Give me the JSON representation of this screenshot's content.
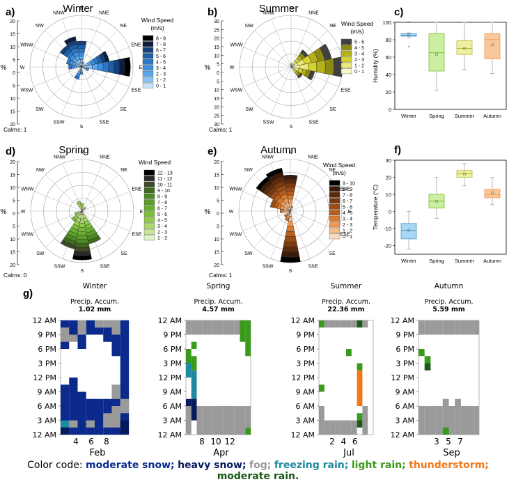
{
  "chart_data": [
    {
      "type": "wind-rose",
      "panel": "a)",
      "title": "Winter",
      "calms": "Calms: 1",
      "r_ticks": [
        20,
        15,
        10,
        5,
        0,
        5,
        10,
        15,
        20
      ],
      "r_max": 20,
      "legend_title": [
        "Wind Speed",
        "(m/s)"
      ],
      "legend": [
        "8 - 9",
        "7 - 8",
        "6 - 7",
        "5 - 6",
        "4 - 5",
        "3 - 4",
        "2 - 3",
        "1 - 2",
        "0 - 1"
      ],
      "legend_colors": [
        "#000000",
        "#0d1e3d",
        "#16407a",
        "#1f5fa8",
        "#2b78c8",
        "#3d8fe0",
        "#58a6ee",
        "#8cc4f4",
        "#c6e2fa"
      ],
      "direction_freq": [
        {
          "dir": "NW",
          "value": 10
        },
        {
          "dir": "NNW",
          "value": 12
        },
        {
          "dir": "N",
          "value": 10
        },
        {
          "dir": "NNE",
          "value": 2
        },
        {
          "dir": "ENE",
          "value": 11
        },
        {
          "dir": "E",
          "value": 19
        },
        {
          "dir": "ESE",
          "value": 3
        },
        {
          "dir": "SSW",
          "value": 5
        },
        {
          "dir": "S",
          "value": 3
        },
        {
          "dir": "WNW",
          "value": 6
        },
        {
          "dir": "W",
          "value": 5
        }
      ]
    },
    {
      "type": "wind-rose",
      "panel": "b)",
      "title": "Summer",
      "calms": "Calms: 1",
      "r_ticks": [
        30,
        25,
        20,
        15,
        10,
        5,
        0,
        5,
        10,
        15,
        20,
        25,
        30
      ],
      "r_max": 30,
      "legend_title": [
        "Wind Speed",
        "(m/s)"
      ],
      "legend": [
        "5 - 6",
        "4 - 5",
        "3 - 4",
        "2 - 3",
        "1 - 2",
        "0 - 1"
      ],
      "legend_colors": [
        "#404040",
        "#8f8a10",
        "#b6b01a",
        "#d8d32e",
        "#ece97a",
        "#f8f6c8"
      ],
      "direction_freq": [
        {
          "dir": "NE",
          "value": 12
        },
        {
          "dir": "ENE",
          "value": 24
        },
        {
          "dir": "E",
          "value": 30
        },
        {
          "dir": "ESE",
          "value": 14
        },
        {
          "dir": "SE",
          "value": 8
        },
        {
          "dir": "N",
          "value": 2
        }
      ]
    },
    {
      "type": "box",
      "panel": "c)",
      "ylabel": "Humidity (%)",
      "categories": [
        "Winter",
        "Spring",
        "Summer",
        "Autumn"
      ],
      "ylim": [
        0,
        100
      ],
      "yticks": [
        0,
        20,
        40,
        60,
        80,
        100
      ],
      "boxes": [
        {
          "q1": 84,
          "median": 85,
          "q3": 87,
          "whisker_low": 82,
          "whisker_high": 88,
          "mean": 85,
          "outliers": [
            72,
            100
          ]
        },
        {
          "q1": 44,
          "median": 65,
          "q3": 87,
          "whisker_low": 22,
          "whisker_high": 100,
          "mean": 63
        },
        {
          "q1": 63,
          "median": 70,
          "q3": 79,
          "whisker_low": 46,
          "whisker_high": 100,
          "mean": 70
        },
        {
          "q1": 58,
          "median": 80,
          "q3": 87,
          "whisker_low": 41,
          "whisker_high": 100,
          "mean": 74
        }
      ],
      "colors": [
        "#a9d6f2",
        "#cceea0",
        "#eef0a0",
        "#f8c89a"
      ],
      "edge_colors": [
        "#4a96c8",
        "#7cbc3a",
        "#b6b63c",
        "#e89a56"
      ]
    },
    {
      "type": "wind-rose",
      "panel": "d)",
      "title": "Spring",
      "calms": "Calms: 0",
      "r_ticks": [
        20,
        15,
        10,
        5,
        0,
        5,
        10,
        15,
        20
      ],
      "r_max": 20,
      "legend_title": [
        "Wind Speed"
      ],
      "legend": [
        "12 - 13",
        "11 - 12",
        "10 - 11",
        "9 - 10",
        "8 - 9",
        "7 - 8",
        "6 - 7",
        "5 - 6",
        "4 - 5",
        "3 - 4",
        "2 - 3",
        "1 - 2"
      ],
      "legend_colors": [
        "#000000",
        "#2a2a2a",
        "#3c4a28",
        "#406a1e",
        "#4c8a22",
        "#5a9e28",
        "#6ab030",
        "#7cc03a",
        "#92cc4e",
        "#aed86e",
        "#c8e698",
        "#e2f2c8"
      ],
      "direction_freq": [
        {
          "dir": "S",
          "value": 19
        },
        {
          "dir": "SSW",
          "value": 15
        },
        {
          "dir": "SSE",
          "value": 13
        },
        {
          "dir": "SW",
          "value": 5
        },
        {
          "dir": "WSW",
          "value": 3
        },
        {
          "dir": "NNW",
          "value": 4
        },
        {
          "dir": "N",
          "value": 3
        },
        {
          "dir": "NE",
          "value": 2
        }
      ]
    },
    {
      "type": "wind-rose",
      "panel": "e)",
      "title": "Autumn",
      "calms": "Calms: 1",
      "r_ticks": [
        20,
        15,
        10,
        5,
        0,
        5,
        10,
        15,
        20
      ],
      "r_max": 20,
      "legend_title": [
        "Wind Speed",
        "(m/s)"
      ],
      "legend": [
        "9 - 10",
        "8 - 9",
        "7 - 8",
        "6 - 7",
        "5 - 6",
        "4 - 5",
        "3 - 4",
        "2 - 3",
        "1 - 2",
        "0 - 1"
      ],
      "legend_colors": [
        "#000000",
        "#3a1a08",
        "#5a2a0c",
        "#7a3a10",
        "#9a4c16",
        "#b85e1c",
        "#d87a30",
        "#ee9a56",
        "#f6bc8c",
        "#fbdcc0"
      ],
      "direction_freq": [
        {
          "dir": "NW",
          "value": 16
        },
        {
          "dir": "NNW",
          "value": 17
        },
        {
          "dir": "N",
          "value": 14
        },
        {
          "dir": "WNW",
          "value": 8
        },
        {
          "dir": "W",
          "value": 4
        },
        {
          "dir": "S",
          "value": 20
        },
        {
          "dir": "SSW",
          "value": 4
        },
        {
          "dir": "SW",
          "value": 3
        },
        {
          "dir": "NNE",
          "value": 2
        }
      ]
    },
    {
      "type": "box",
      "panel": "f)",
      "ylabel": "Temperature (°C)",
      "categories": [
        "Winter",
        "Spring",
        "Summer",
        "Autumn"
      ],
      "ylim": [
        -25,
        30
      ],
      "yticks": [
        -20,
        -10,
        0,
        10,
        20,
        30
      ],
      "boxes": [
        {
          "q1": -16,
          "median": -11,
          "q3": -7,
          "whisker_low": -22,
          "whisker_high": 0,
          "mean": -11
        },
        {
          "q1": 2,
          "median": 6,
          "q3": 10,
          "whisker_low": -4,
          "whisker_high": 20,
          "mean": 6
        },
        {
          "q1": 20,
          "median": 22,
          "q3": 24,
          "whisker_low": 15,
          "whisker_high": 28,
          "mean": 22
        },
        {
          "q1": 8,
          "median": 10,
          "q3": 13,
          "whisker_low": 4,
          "whisker_high": 20,
          "mean": 11
        }
      ],
      "colors": [
        "#a9d6f2",
        "#cceea0",
        "#eef0a0",
        "#f8c89a"
      ],
      "edge_colors": [
        "#4a96c8",
        "#7cbc3a",
        "#b6b63c",
        "#e89a56"
      ]
    },
    {
      "type": "heatmap",
      "panel": "g)",
      "y_ticks": [
        "12 AM",
        "9 PM",
        "6 PM",
        "3 PM",
        "12 PM",
        "9 AM",
        "6 AM",
        "3 AM",
        "12 AM"
      ],
      "precip_label": "Precip. Accum.",
      "seasons": [
        {
          "title": "Winter",
          "accum": "1.02 mm",
          "month": "Feb",
          "xticks": [
            "4",
            "6",
            "8"
          ]
        },
        {
          "title": "Spring",
          "accum": "4.57 mm",
          "month": "Apr",
          "xticks": [
            "8",
            "10",
            "12"
          ]
        },
        {
          "title": "Summer",
          "accum": "22.36 mm",
          "month": "Jul",
          "xticks": [
            "2",
            "4",
            "6"
          ]
        },
        {
          "title": "Autumn",
          "accum": "5.59 mm",
          "month": "Sep",
          "xticks": [
            "3",
            "5",
            "7"
          ]
        }
      ]
    }
  ],
  "heat_colors": {
    "moderate_snow": "#0b2a8c",
    "heavy_snow": "#061a5e",
    "fog": "#9a9a9a",
    "freezing_rain": "#1d8aa0",
    "light_rain": "#3a9a1c",
    "thunderstorm": "#f07818",
    "moderate_rain": "#1a5a16"
  },
  "footer": {
    "lead": "Color code: ",
    "items": [
      {
        "text": "moderate snow;",
        "color": "#0b2a8c"
      },
      {
        "text": "heavy snow;",
        "color": "#061a5e"
      },
      {
        "text": "fog;",
        "color": "#9a9a9a"
      },
      {
        "text": "freezing rain;",
        "color": "#1d8aa0"
      },
      {
        "text": "light rain;",
        "color": "#3a9a1c"
      },
      {
        "text": "thunderstorm;",
        "color": "#f07818"
      },
      {
        "text": "moderate rain.",
        "color": "#1a5a16"
      }
    ]
  },
  "compass": [
    "N",
    "NNE",
    "NE",
    "ENE",
    "E",
    "ESE",
    "SE",
    "SSE",
    "S",
    "SSW",
    "SW",
    "WSW",
    "W",
    "WNW",
    "NW",
    "NNW"
  ]
}
